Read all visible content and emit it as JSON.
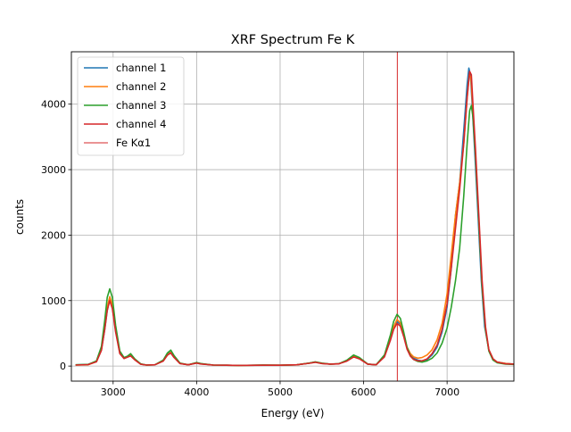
{
  "chart_data": {
    "type": "line",
    "title": "XRF Spectrum Fe K",
    "xlabel": "Energy  (eV)",
    "ylabel": "counts",
    "xlim": [
      2500,
      7800
    ],
    "ylim": [
      -230,
      4800
    ],
    "grid": true,
    "legend_position": "top-left",
    "x_ticks": [
      3000,
      4000,
      5000,
      6000,
      7000
    ],
    "y_ticks": [
      0,
      1000,
      2000,
      3000,
      4000
    ],
    "series": [
      {
        "name": "channel 1",
        "color": "#1f77b4",
        "points": [
          [
            2550,
            18
          ],
          [
            2700,
            25
          ],
          [
            2800,
            70
          ],
          [
            2860,
            250
          ],
          [
            2900,
            560
          ],
          [
            2930,
            850
          ],
          [
            2960,
            1020
          ],
          [
            2990,
            900
          ],
          [
            3030,
            540
          ],
          [
            3080,
            200
          ],
          [
            3130,
            125
          ],
          [
            3170,
            140
          ],
          [
            3210,
            165
          ],
          [
            3260,
            100
          ],
          [
            3330,
            30
          ],
          [
            3400,
            15
          ],
          [
            3500,
            20
          ],
          [
            3600,
            80
          ],
          [
            3650,
            180
          ],
          [
            3690,
            215
          ],
          [
            3730,
            140
          ],
          [
            3800,
            40
          ],
          [
            3900,
            20
          ],
          [
            4000,
            48
          ],
          [
            4050,
            35
          ],
          [
            4200,
            15
          ],
          [
            4500,
            10
          ],
          [
            4800,
            14
          ],
          [
            5000,
            12
          ],
          [
            5200,
            20
          ],
          [
            5350,
            45
          ],
          [
            5420,
            60
          ],
          [
            5500,
            40
          ],
          [
            5600,
            30
          ],
          [
            5700,
            35
          ],
          [
            5800,
            80
          ],
          [
            5880,
            150
          ],
          [
            5950,
            120
          ],
          [
            6050,
            30
          ],
          [
            6150,
            20
          ],
          [
            6250,
            150
          ],
          [
            6320,
            400
          ],
          [
            6360,
            570
          ],
          [
            6400,
            680
          ],
          [
            6440,
            640
          ],
          [
            6480,
            480
          ],
          [
            6520,
            280
          ],
          [
            6560,
            170
          ],
          [
            6600,
            120
          ],
          [
            6650,
            90
          ],
          [
            6700,
            80
          ],
          [
            6760,
            100
          ],
          [
            6820,
            170
          ],
          [
            6880,
            290
          ],
          [
            6940,
            520
          ],
          [
            7000,
            900
          ],
          [
            7050,
            1500
          ],
          [
            7100,
            2300
          ],
          [
            7150,
            2800
          ],
          [
            7200,
            3600
          ],
          [
            7240,
            4300
          ],
          [
            7260,
            4550
          ],
          [
            7280,
            4450
          ],
          [
            7300,
            4000
          ],
          [
            7330,
            3300
          ],
          [
            7370,
            2300
          ],
          [
            7410,
            1300
          ],
          [
            7450,
            600
          ],
          [
            7500,
            250
          ],
          [
            7550,
            110
          ],
          [
            7600,
            60
          ],
          [
            7700,
            40
          ],
          [
            7800,
            30
          ]
        ]
      },
      {
        "name": "channel 2",
        "color": "#ff7f0e",
        "points": [
          [
            2550,
            15
          ],
          [
            2700,
            20
          ],
          [
            2800,
            70
          ],
          [
            2860,
            260
          ],
          [
            2900,
            600
          ],
          [
            2930,
            900
          ],
          [
            2960,
            1060
          ],
          [
            2990,
            940
          ],
          [
            3030,
            560
          ],
          [
            3080,
            200
          ],
          [
            3130,
            120
          ],
          [
            3170,
            140
          ],
          [
            3210,
            160
          ],
          [
            3260,
            100
          ],
          [
            3330,
            30
          ],
          [
            3400,
            15
          ],
          [
            3500,
            20
          ],
          [
            3600,
            80
          ],
          [
            3650,
            170
          ],
          [
            3690,
            210
          ],
          [
            3730,
            140
          ],
          [
            3800,
            40
          ],
          [
            3900,
            20
          ],
          [
            4000,
            50
          ],
          [
            4050,
            35
          ],
          [
            4200,
            15
          ],
          [
            4500,
            10
          ],
          [
            4800,
            14
          ],
          [
            5000,
            12
          ],
          [
            5200,
            20
          ],
          [
            5350,
            45
          ],
          [
            5420,
            60
          ],
          [
            5500,
            40
          ],
          [
            5600,
            30
          ],
          [
            5700,
            35
          ],
          [
            5800,
            80
          ],
          [
            5880,
            150
          ],
          [
            5950,
            120
          ],
          [
            6050,
            30
          ],
          [
            6150,
            20
          ],
          [
            6250,
            150
          ],
          [
            6320,
            420
          ],
          [
            6360,
            600
          ],
          [
            6400,
            710
          ],
          [
            6440,
            660
          ],
          [
            6480,
            490
          ],
          [
            6520,
            290
          ],
          [
            6560,
            190
          ],
          [
            6600,
            140
          ],
          [
            6650,
            120
          ],
          [
            6700,
            130
          ],
          [
            6760,
            170
          ],
          [
            6820,
            250
          ],
          [
            6880,
            400
          ],
          [
            6940,
            650
          ],
          [
            7000,
            1100
          ],
          [
            7050,
            1700
          ],
          [
            7100,
            2300
          ],
          [
            7150,
            2800
          ],
          [
            7200,
            3400
          ],
          [
            7240,
            4100
          ],
          [
            7265,
            4450
          ],
          [
            7285,
            4400
          ],
          [
            7310,
            3900
          ],
          [
            7340,
            3200
          ],
          [
            7380,
            2200
          ],
          [
            7420,
            1200
          ],
          [
            7460,
            550
          ],
          [
            7500,
            250
          ],
          [
            7550,
            110
          ],
          [
            7600,
            60
          ],
          [
            7700,
            40
          ],
          [
            7800,
            30
          ]
        ]
      },
      {
        "name": "channel 3",
        "color": "#2ca02c",
        "points": [
          [
            2550,
            20
          ],
          [
            2700,
            25
          ],
          [
            2800,
            80
          ],
          [
            2860,
            300
          ],
          [
            2900,
            700
          ],
          [
            2930,
            1050
          ],
          [
            2960,
            1180
          ],
          [
            2990,
            1050
          ],
          [
            3030,
            620
          ],
          [
            3080,
            230
          ],
          [
            3130,
            130
          ],
          [
            3170,
            150
          ],
          [
            3210,
            190
          ],
          [
            3260,
            110
          ],
          [
            3330,
            35
          ],
          [
            3400,
            15
          ],
          [
            3500,
            20
          ],
          [
            3600,
            90
          ],
          [
            3650,
            200
          ],
          [
            3690,
            245
          ],
          [
            3730,
            160
          ],
          [
            3800,
            45
          ],
          [
            3900,
            20
          ],
          [
            4000,
            55
          ],
          [
            4050,
            38
          ],
          [
            4200,
            15
          ],
          [
            4500,
            10
          ],
          [
            4800,
            14
          ],
          [
            5000,
            12
          ],
          [
            5200,
            20
          ],
          [
            5350,
            45
          ],
          [
            5420,
            65
          ],
          [
            5500,
            45
          ],
          [
            5600,
            30
          ],
          [
            5700,
            35
          ],
          [
            5800,
            90
          ],
          [
            5880,
            170
          ],
          [
            5950,
            130
          ],
          [
            6050,
            30
          ],
          [
            6150,
            20
          ],
          [
            6250,
            170
          ],
          [
            6320,
            470
          ],
          [
            6360,
            680
          ],
          [
            6400,
            790
          ],
          [
            6440,
            730
          ],
          [
            6480,
            520
          ],
          [
            6520,
            290
          ],
          [
            6560,
            160
          ],
          [
            6600,
            100
          ],
          [
            6650,
            70
          ],
          [
            6700,
            60
          ],
          [
            6760,
            80
          ],
          [
            6820,
            120
          ],
          [
            6880,
            200
          ],
          [
            6940,
            350
          ],
          [
            7000,
            580
          ],
          [
            7050,
            900
          ],
          [
            7100,
            1300
          ],
          [
            7150,
            1800
          ],
          [
            7200,
            2600
          ],
          [
            7240,
            3400
          ],
          [
            7270,
            3900
          ],
          [
            7290,
            3980
          ],
          [
            7310,
            3800
          ],
          [
            7340,
            3200
          ],
          [
            7380,
            2200
          ],
          [
            7420,
            1200
          ],
          [
            7460,
            560
          ],
          [
            7500,
            230
          ],
          [
            7550,
            90
          ],
          [
            7600,
            50
          ],
          [
            7700,
            30
          ],
          [
            7800,
            25
          ]
        ]
      },
      {
        "name": "channel 4",
        "color": "#d62728",
        "points": [
          [
            2550,
            15
          ],
          [
            2700,
            22
          ],
          [
            2800,
            65
          ],
          [
            2860,
            240
          ],
          [
            2900,
            560
          ],
          [
            2930,
            850
          ],
          [
            2960,
            1000
          ],
          [
            2990,
            880
          ],
          [
            3030,
            520
          ],
          [
            3080,
            190
          ],
          [
            3130,
            115
          ],
          [
            3170,
            135
          ],
          [
            3210,
            155
          ],
          [
            3260,
            95
          ],
          [
            3330,
            28
          ],
          [
            3400,
            15
          ],
          [
            3500,
            20
          ],
          [
            3600,
            75
          ],
          [
            3650,
            165
          ],
          [
            3690,
            200
          ],
          [
            3730,
            130
          ],
          [
            3800,
            38
          ],
          [
            3900,
            20
          ],
          [
            4000,
            45
          ],
          [
            4050,
            32
          ],
          [
            4200,
            15
          ],
          [
            4500,
            10
          ],
          [
            4800,
            13
          ],
          [
            5000,
            12
          ],
          [
            5200,
            20
          ],
          [
            5350,
            42
          ],
          [
            5420,
            58
          ],
          [
            5500,
            38
          ],
          [
            5600,
            30
          ],
          [
            5700,
            33
          ],
          [
            5800,
            75
          ],
          [
            5880,
            140
          ],
          [
            5950,
            110
          ],
          [
            6050,
            28
          ],
          [
            6150,
            20
          ],
          [
            6250,
            140
          ],
          [
            6320,
            390
          ],
          [
            6360,
            560
          ],
          [
            6400,
            650
          ],
          [
            6440,
            610
          ],
          [
            6480,
            450
          ],
          [
            6520,
            260
          ],
          [
            6560,
            150
          ],
          [
            6600,
            100
          ],
          [
            6650,
            80
          ],
          [
            6700,
            80
          ],
          [
            6760,
            110
          ],
          [
            6820,
            190
          ],
          [
            6880,
            320
          ],
          [
            6940,
            560
          ],
          [
            7000,
            950
          ],
          [
            7050,
            1500
          ],
          [
            7100,
            2100
          ],
          [
            7150,
            2700
          ],
          [
            7200,
            3400
          ],
          [
            7240,
            4100
          ],
          [
            7270,
            4500
          ],
          [
            7290,
            4450
          ],
          [
            7310,
            4000
          ],
          [
            7340,
            3300
          ],
          [
            7380,
            2300
          ],
          [
            7420,
            1300
          ],
          [
            7460,
            600
          ],
          [
            7500,
            250
          ],
          [
            7550,
            110
          ],
          [
            7600,
            60
          ],
          [
            7700,
            35
          ],
          [
            7800,
            30
          ]
        ]
      }
    ],
    "reference_line": {
      "name": "Fe Kα1",
      "x": 6404,
      "color": "#d62728"
    }
  }
}
